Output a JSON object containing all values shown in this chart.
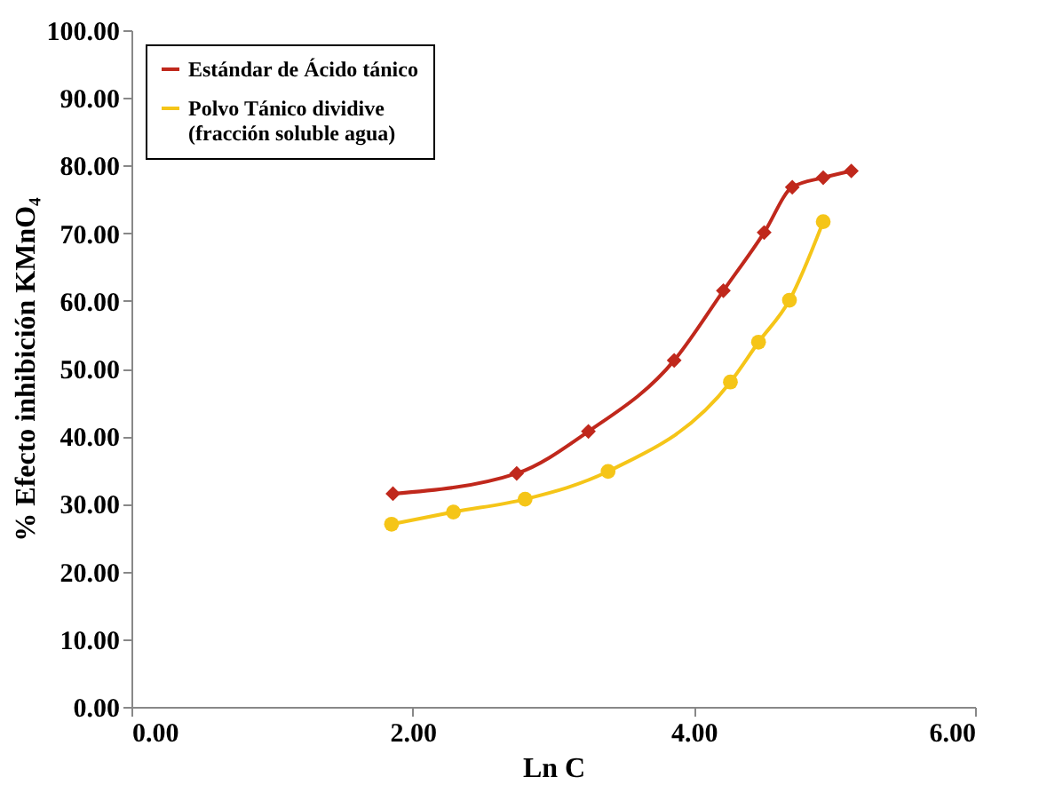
{
  "chart_data": {
    "type": "line",
    "xlabel": "Ln C",
    "ylabel": "% Efecto inhibición KMnO₄",
    "xlim": [
      0,
      6
    ],
    "xticks": [
      {
        "value": 0,
        "label": "0.00"
      },
      {
        "value": 2,
        "label": "2.00"
      },
      {
        "value": 4,
        "label": "4.00"
      },
      {
        "value": 6,
        "label": "6.00"
      }
    ],
    "ylim": [
      0,
      100
    ],
    "yticks": [
      {
        "value": 0,
        "label": "0.00"
      },
      {
        "value": 10,
        "label": "10.00"
      },
      {
        "value": 20,
        "label": "20.00"
      },
      {
        "value": 30,
        "label": "30.00"
      },
      {
        "value": 40,
        "label": "40.00"
      },
      {
        "value": 50,
        "label": "50.00"
      },
      {
        "value": 60,
        "label": "60.00"
      },
      {
        "value": 70,
        "label": "70.00"
      },
      {
        "value": 80,
        "label": "80.00"
      },
      {
        "value": 90,
        "label": "90.00"
      },
      {
        "value": 100,
        "label": "100.00"
      }
    ],
    "grid": false,
    "legend": "top left",
    "series": [
      {
        "name": "Estándar de Ácido tánico",
        "color": "#c0281c",
        "marker": "diamond",
        "x": [
          1.86,
          2.74,
          3.25,
          3.86,
          4.21,
          4.5,
          4.7,
          4.92,
          5.12
        ],
        "values": [
          31.5,
          34.5,
          40.7,
          51.2,
          61.5,
          70.1,
          76.8,
          78.2,
          79.2
        ]
      },
      {
        "name": "Polvo Tánico dividive (fracción soluble agua)",
        "color": "#f5c518",
        "marker": "circle",
        "x": [
          1.85,
          2.29,
          2.8,
          3.39,
          4.26,
          4.46,
          4.68,
          4.92
        ],
        "values": [
          27.0,
          28.8,
          30.7,
          34.8,
          48.0,
          53.9,
          60.1,
          71.7
        ]
      }
    ]
  }
}
